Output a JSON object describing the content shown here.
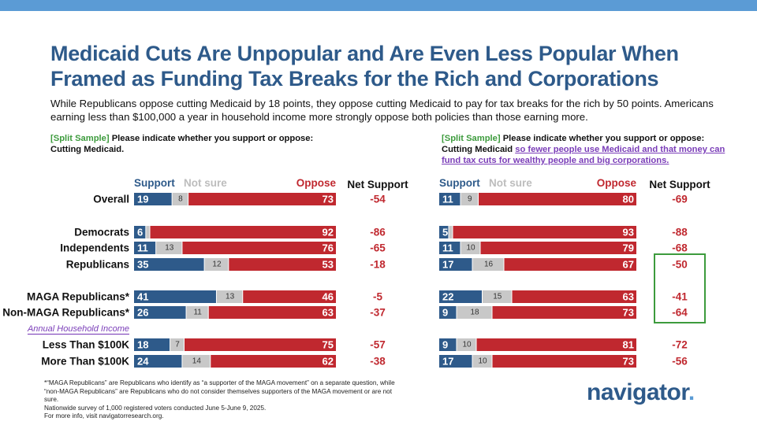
{
  "title": "Medicaid Cuts Are Unpopular and Are Even Less Popular When Framed as Funding Tax Breaks for the Rich and Corporations",
  "subtitle": "While Republicans oppose cutting Medicaid by 18 points, they oppose cutting Medicaid to pay for tax breaks for the rich by 50 points. Americans earning less than $100,000 a year in household income more strongly oppose both policies than those earning more.",
  "left_prompt": {
    "tag": "[Split Sample]",
    "text": " Please indicate whether you support or oppose:",
    "line2": "Cutting Medicaid."
  },
  "right_prompt": {
    "tag": "[Split Sample]",
    "text": " Please indicate whether you support or oppose:",
    "line2_plain": "Cutting Medicaid ",
    "line2_link": "so fewer people use Medicaid and that money can fund tax cuts for wealthy people and big corporations."
  },
  "footnotes": {
    "line1": "*“MAGA Republicans” are Republicans who identify as “a supporter of the MAGA movement” on a separate question, while “non-MAGA Republicans” are Republicans who do not consider themselves supporters of the MAGA movement or are not sure.",
    "line2": "Nationwide survey of 1,000 registered voters conducted June 5-June 9, 2025.",
    "line3": "For more info, visit navigatorresearch.org."
  },
  "logo": {
    "text": "navigator",
    "dot": "."
  },
  "colors": {
    "support": "#2e5a8a",
    "not_sure": "#c8c8c8",
    "oppose": "#c0282f",
    "highlight": "#3d9b3d",
    "title": "#2e5a8a"
  },
  "chart_data": [
    {
      "type": "bar",
      "stacked": true,
      "orientation": "horizontal",
      "panel": "left",
      "legend": [
        "Support",
        "Not sure",
        "Oppose"
      ],
      "net_label": "Net Support",
      "section_label": "Annual Household Income",
      "categories": [
        "Overall",
        "Democrats",
        "Independents",
        "Republicans",
        "MAGA Republicans*",
        "Non-MAGA Republicans*",
        "Less Than $100K",
        "More Than $100K"
      ],
      "series": [
        {
          "name": "Support",
          "values": [
            19,
            6,
            11,
            35,
            41,
            26,
            18,
            24
          ]
        },
        {
          "name": "Not sure",
          "values": [
            8,
            2,
            13,
            12,
            13,
            11,
            7,
            14
          ]
        },
        {
          "name": "Oppose",
          "values": [
            73,
            92,
            76,
            53,
            46,
            63,
            75,
            62
          ]
        }
      ],
      "net": [
        "-54",
        "-86",
        "-65",
        "-18",
        "-5",
        "-37",
        "-57",
        "-38"
      ],
      "highlighted_rows": []
    },
    {
      "type": "bar",
      "stacked": true,
      "orientation": "horizontal",
      "panel": "right",
      "legend": [
        "Support",
        "Not sure",
        "Oppose"
      ],
      "net_label": "Net Support",
      "categories": [
        "Overall",
        "Democrats",
        "Independents",
        "Republicans",
        "MAGA Republicans*",
        "Non-MAGA Republicans*",
        "Less Than $100K",
        "More Than $100K"
      ],
      "series": [
        {
          "name": "Support",
          "values": [
            11,
            5,
            11,
            17,
            22,
            9,
            9,
            17
          ]
        },
        {
          "name": "Not sure",
          "values": [
            9,
            2,
            10,
            16,
            15,
            18,
            10,
            10
          ]
        },
        {
          "name": "Oppose",
          "values": [
            80,
            93,
            79,
            67,
            63,
            73,
            81,
            73
          ]
        }
      ],
      "net": [
        "-69",
        "-88",
        "-68",
        "-50",
        "-41",
        "-64",
        "-72",
        "-56"
      ],
      "highlighted_rows": [
        3,
        4,
        5
      ]
    }
  ]
}
